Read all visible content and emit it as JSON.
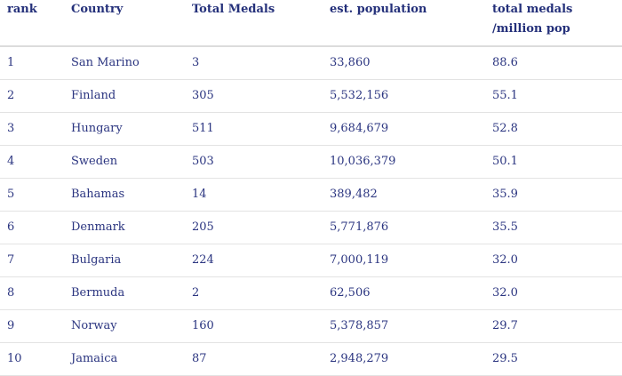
{
  "table": {
    "headers": {
      "rank": "rank",
      "country": "Country",
      "total_medals": "Total Medals",
      "population": "est. population",
      "ratio_line1": "total medals",
      "ratio_line2": "/million pop"
    },
    "rows": [
      {
        "rank": "1",
        "country": "San Marino",
        "total_medals": "3",
        "population": "33,860",
        "ratio": "88.6"
      },
      {
        "rank": "2",
        "country": "Finland",
        "total_medals": "305",
        "population": "5,532,156",
        "ratio": "55.1"
      },
      {
        "rank": "3",
        "country": "Hungary",
        "total_medals": "511",
        "population": "9,684,679",
        "ratio": "52.8"
      },
      {
        "rank": "4",
        "country": "Sweden",
        "total_medals": "503",
        "population": "10,036,379",
        "ratio": "50.1"
      },
      {
        "rank": "5",
        "country": "Bahamas",
        "total_medals": "14",
        "population": "389,482",
        "ratio": "35.9"
      },
      {
        "rank": "6",
        "country": "Denmark",
        "total_medals": "205",
        "population": "5,771,876",
        "ratio": "35.5"
      },
      {
        "rank": "7",
        "country": "Bulgaria",
        "total_medals": "224",
        "population": "7,000,119",
        "ratio": "32.0"
      },
      {
        "rank": "8",
        "country": "Bermuda",
        "total_medals": "2",
        "population": "62,506",
        "ratio": "32.0"
      },
      {
        "rank": "9",
        "country": "Norway",
        "total_medals": "160",
        "population": "5,378,857",
        "ratio": "29.7"
      },
      {
        "rank": "10",
        "country": "Jamaica",
        "total_medals": "87",
        "population": "2,948,279",
        "ratio": "29.5"
      }
    ]
  }
}
